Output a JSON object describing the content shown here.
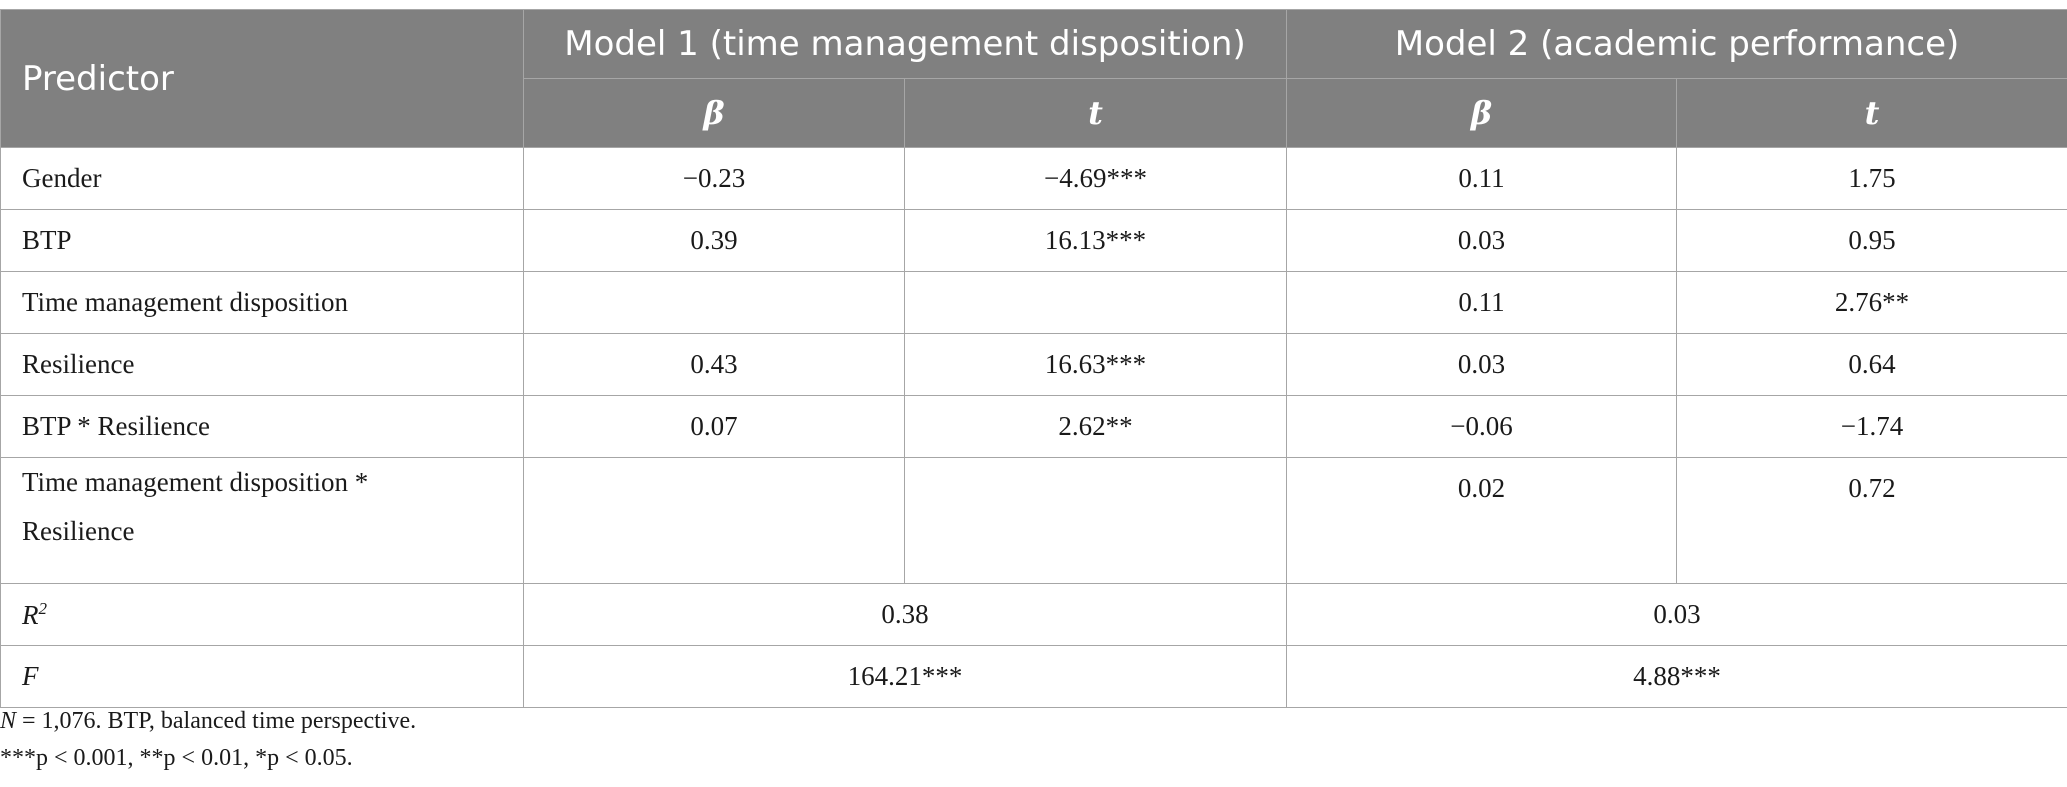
{
  "header": {
    "predictor": "Predictor",
    "model1": "Model 1 (time management disposition)",
    "model2": "Model 2 (academic performance)",
    "beta": "β",
    "t": "t"
  },
  "rows": [
    {
      "label": "Gender",
      "m1_beta": "−0.23",
      "m1_t": "−4.69***",
      "m2_beta": "0.11",
      "m2_t": "1.75"
    },
    {
      "label": "BTP",
      "m1_beta": "0.39",
      "m1_t": "16.13***",
      "m2_beta": "0.03",
      "m2_t": "0.95"
    },
    {
      "label": "Time management disposition",
      "m1_beta": "",
      "m1_t": "",
      "m2_beta": "0.11",
      "m2_t": "2.76**"
    },
    {
      "label": "Resilience",
      "m1_beta": "0.43",
      "m1_t": "16.63***",
      "m2_beta": "0.03",
      "m2_t": "0.64"
    },
    {
      "label": "BTP * Resilience",
      "m1_beta": "0.07",
      "m1_t": "2.62**",
      "m2_beta": "−0.06",
      "m2_t": "−1.74"
    },
    {
      "label_line1": "Time management disposition *",
      "label_line2": "Resilience",
      "m1_beta": "",
      "m1_t": "",
      "m2_beta": "0.02",
      "m2_t": "0.72"
    }
  ],
  "summary": {
    "r2_label": "R",
    "r2_sup": "2",
    "r2_m1": "0.38",
    "r2_m2": "0.03",
    "f_label": "F",
    "f_m1": "164.21***",
    "f_m2": "4.88***"
  },
  "notes": {
    "n_label": "N",
    "n_text": " = 1,076. BTP, balanced time perspective.",
    "sig_text": "***p < 0.001, **p < 0.01, *p < 0.05."
  }
}
